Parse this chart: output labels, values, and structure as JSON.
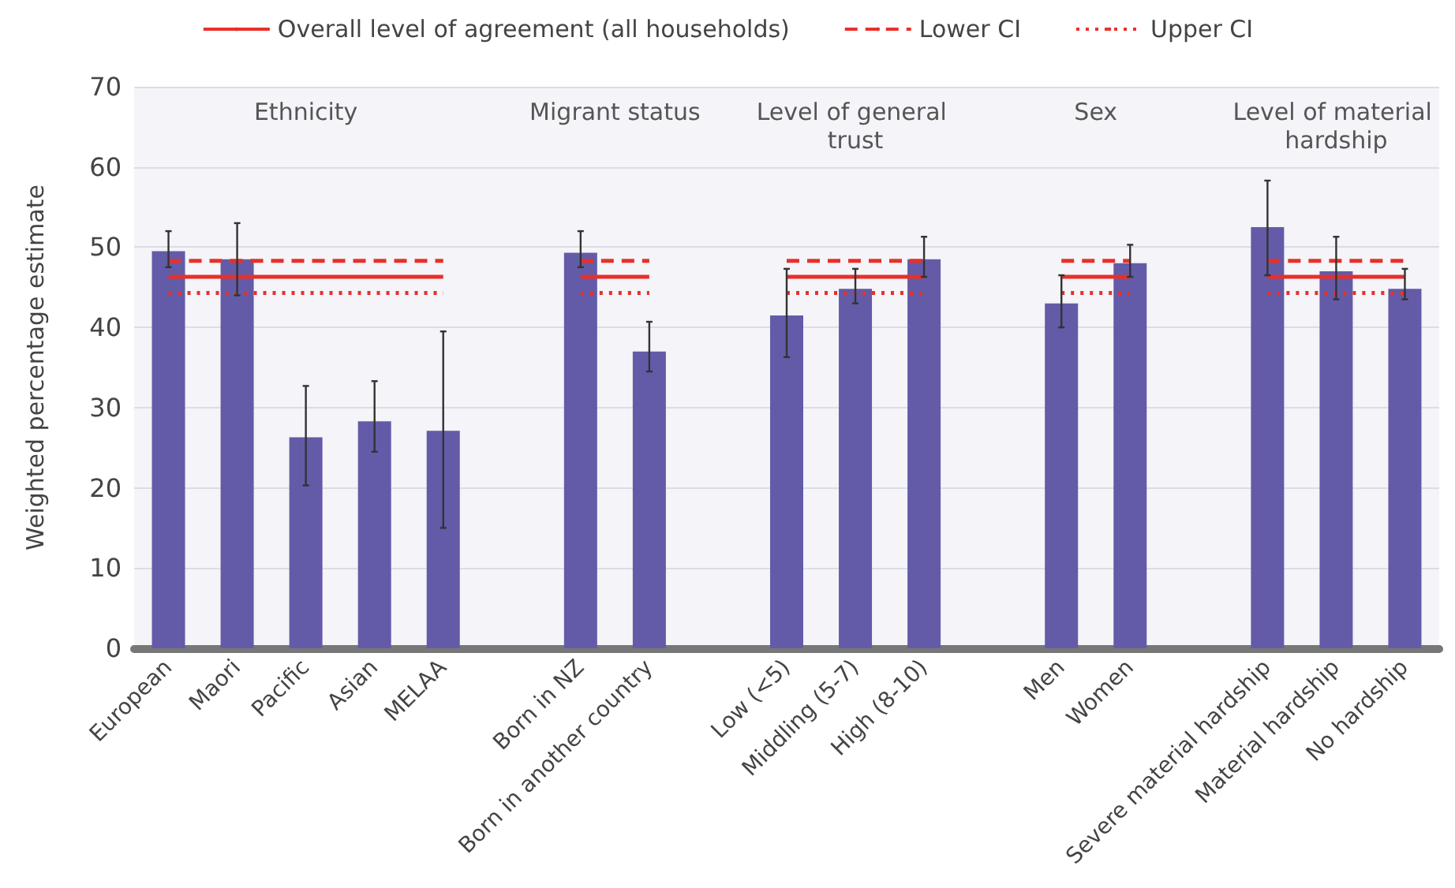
{
  "chart_data": {
    "type": "bar",
    "ylabel": "Weighted percentage estimate",
    "categories": [
      "European",
      "Maori",
      "Pacific",
      "Asian",
      "MELAA",
      null,
      "Born in NZ",
      "Born in another country",
      null,
      "Low (<5)",
      "Middling (5-7)",
      "High (8-10)",
      null,
      "Men",
      "Women",
      null,
      "Severe material hardship",
      "Material hardship",
      "No hardship"
    ],
    "series": [
      {
        "color": "#635ba8",
        "values": [
          49.5,
          48.5,
          26.3,
          28.3,
          27.1,
          null,
          49.3,
          37,
          null,
          41.5,
          44.8,
          48.5,
          null,
          43,
          48,
          null,
          52.5,
          47,
          44.8
        ],
        "errors": [
          [
            47.5,
            52
          ],
          [
            44,
            53
          ],
          [
            20.3,
            32.7
          ],
          [
            24.5,
            33.3
          ],
          [
            15,
            39.5
          ],
          null,
          [
            47.5,
            52
          ],
          [
            34.5,
            40.7
          ],
          null,
          [
            36.3,
            47.3
          ],
          [
            43,
            47.3
          ],
          [
            46.3,
            51.3
          ],
          null,
          [
            40,
            46.5
          ],
          [
            46.3,
            50.3
          ],
          null,
          [
            46.5,
            58.3
          ],
          [
            43.5,
            51.3
          ],
          [
            43.5,
            47.3
          ]
        ]
      },
      {
        "type": "line",
        "name": "Overall level of agreement (all households)",
        "color": "#e8302a",
        "line_style": "solid",
        "values": [
          46.3,
          46.3,
          46.3,
          46.3,
          46.3,
          null,
          46.3,
          46.3,
          null,
          46.3,
          46.3,
          46.3,
          null,
          46.3,
          46.3,
          null,
          46.3,
          46.3,
          46.3
        ]
      },
      {
        "type": "line",
        "name": "Lower CI",
        "color": "#e8302a",
        "line_style": "dashed",
        "values": [
          48.3,
          48.3,
          48.3,
          48.3,
          48.3,
          null,
          48.3,
          48.3,
          null,
          48.3,
          48.3,
          48.3,
          null,
          48.3,
          48.3,
          null,
          48.3,
          48.3,
          48.3
        ]
      },
      {
        "type": "line",
        "name": "Upper CI",
        "color": "#e8302a",
        "line_style": "dotted",
        "values": [
          44.3,
          44.3,
          44.3,
          44.3,
          44.3,
          null,
          44.3,
          44.3,
          null,
          44.3,
          44.3,
          44.3,
          null,
          44.3,
          44.3,
          null,
          44.3,
          44.3,
          44.3
        ]
      }
    ],
    "annotations": [
      "Ethnicity",
      "Migrant status",
      "Level of general trust",
      "Sex",
      "Level of material hardship"
    ],
    "ylim": [
      0,
      70
    ],
    "yticks": [
      0,
      10,
      20,
      30,
      40,
      50,
      60,
      70
    ],
    "grid": "y",
    "legend": "top",
    "marker": "none"
  }
}
